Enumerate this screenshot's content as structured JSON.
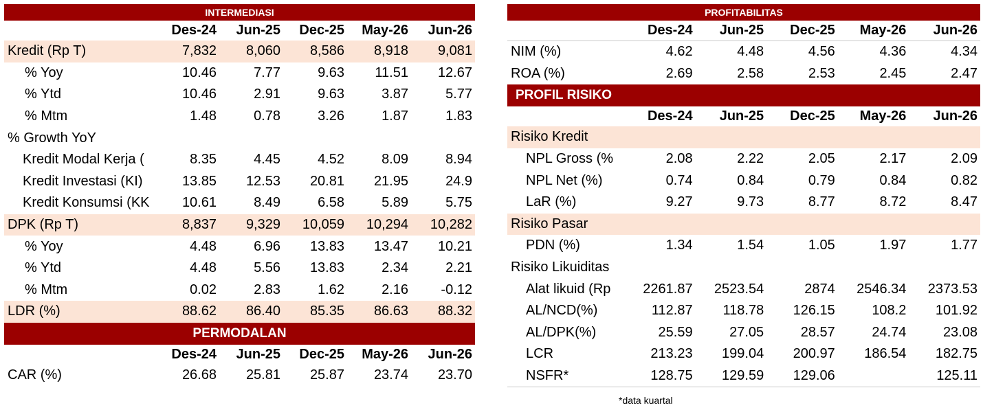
{
  "intermediasi": {
    "title": "INTERMEDIASI",
    "columns": [
      "Des-24",
      "Jun-25",
      "Dec-25",
      "May-26",
      "Jun-26"
    ],
    "rows": [
      {
        "label": "Kredit (Rp T)",
        "values": [
          "7,832",
          "8,060",
          "8,586",
          "8,918",
          "9,081"
        ]
      },
      {
        "label": "% Yoy",
        "values": [
          "10.46",
          "7.77",
          "9.63",
          "11.51",
          "12.67"
        ]
      },
      {
        "label": "% Ytd",
        "values": [
          "10.46",
          "2.91",
          "9.63",
          "3.87",
          "5.77"
        ]
      },
      {
        "label": "% Mtm",
        "values": [
          "1.48",
          "0.78",
          "3.26",
          "1.87",
          "1.83"
        ]
      },
      {
        "label": "% Growth YoY",
        "values": [
          "",
          "",
          "",
          "",
          ""
        ]
      },
      {
        "label": "Kredit Modal Kerja (",
        "values": [
          "8.35",
          "4.45",
          "4.52",
          "8.09",
          "8.94"
        ]
      },
      {
        "label": "Kredit Investasi (KI)",
        "values": [
          "13.85",
          "12.53",
          "20.81",
          "21.95",
          "24.9"
        ]
      },
      {
        "label": "Kredit Konsumsi (KK",
        "values": [
          "10.61",
          "8.49",
          "6.58",
          "5.89",
          "5.75"
        ]
      },
      {
        "label": "DPK (Rp T)",
        "values": [
          "8,837",
          "9,329",
          "10,059",
          "10,294",
          "10,282"
        ]
      },
      {
        "label": "% Yoy",
        "values": [
          "4.48",
          "6.96",
          "13.83",
          "13.47",
          "10.21"
        ]
      },
      {
        "label": "% Ytd",
        "values": [
          "4.48",
          "5.56",
          "13.83",
          "2.34",
          "2.21"
        ]
      },
      {
        "label": "% Mtm",
        "values": [
          "0.02",
          "2.83",
          "1.62",
          "2.16",
          "-0.12"
        ]
      },
      {
        "label": "LDR (%)",
        "values": [
          "88.62",
          "86.40",
          "85.35",
          "86.63",
          "88.32"
        ]
      }
    ]
  },
  "permodalan": {
    "title": "PERMODALAN",
    "columns": [
      "Des-24",
      "Jun-25",
      "Dec-25",
      "May-26",
      "Jun-26"
    ],
    "rows": [
      {
        "label": "CAR (%)",
        "values": [
          "26.68",
          "25.81",
          "25.87",
          "23.74",
          "23.70"
        ]
      }
    ]
  },
  "profitabilitas": {
    "title": "PROFITABILITAS",
    "columns": [
      "Des-24",
      "Jun-25",
      "Dec-25",
      "May-26",
      "Jun-26"
    ],
    "rows": [
      {
        "label": "NIM (%)",
        "values": [
          "4.62",
          "4.48",
          "4.56",
          "4.36",
          "4.34"
        ]
      },
      {
        "label": "ROA (%)",
        "values": [
          "2.69",
          "2.58",
          "2.53",
          "2.45",
          "2.47"
        ]
      }
    ]
  },
  "profil_risiko": {
    "title": "PROFIL RISIKO",
    "columns": [
      "Des-24",
      "Jun-25",
      "Dec-25",
      "May-26",
      "Jun-26"
    ],
    "rows": [
      {
        "label": "Risiko Kredit",
        "values": [
          "",
          "",
          "",
          "",
          ""
        ]
      },
      {
        "label": "NPL Gross (%",
        "values": [
          "2.08",
          "2.22",
          "2.05",
          "2.17",
          "2.09"
        ]
      },
      {
        "label": "NPL Net (%)",
        "values": [
          "0.74",
          "0.84",
          "0.79",
          "0.84",
          "0.82"
        ]
      },
      {
        "label": "LaR (%)",
        "values": [
          "9.27",
          "9.73",
          "8.77",
          "8.72",
          "8.47"
        ]
      },
      {
        "label": "Risiko Pasar",
        "values": [
          "",
          "",
          "",
          "",
          ""
        ]
      },
      {
        "label": "PDN (%)",
        "values": [
          "1.34",
          "1.54",
          "1.05",
          "1.97",
          "1.77"
        ]
      },
      {
        "label": "Risiko Likuiditas",
        "values": [
          "",
          "",
          "",
          "",
          ""
        ]
      },
      {
        "label": "Alat likuid (Rp",
        "values": [
          "2261.87",
          "2523.54",
          "2874",
          "2546.34",
          "2373.53"
        ]
      },
      {
        "label": "AL/NCD(%)",
        "values": [
          "112.87",
          "118.78",
          "126.15",
          "108.2",
          "101.92"
        ]
      },
      {
        "label": "AL/DPK(%)",
        "values": [
          "25.59",
          "27.05",
          "28.57",
          "24.74",
          "23.08"
        ]
      },
      {
        "label": "LCR",
        "values": [
          "213.23",
          "199.04",
          "200.97",
          "186.54",
          "182.75"
        ]
      },
      {
        "label": "NSFR*",
        "values": [
          "128.75",
          "129.59",
          "129.06",
          "",
          "125.11"
        ]
      }
    ]
  },
  "footnote": "*data kuartal"
}
